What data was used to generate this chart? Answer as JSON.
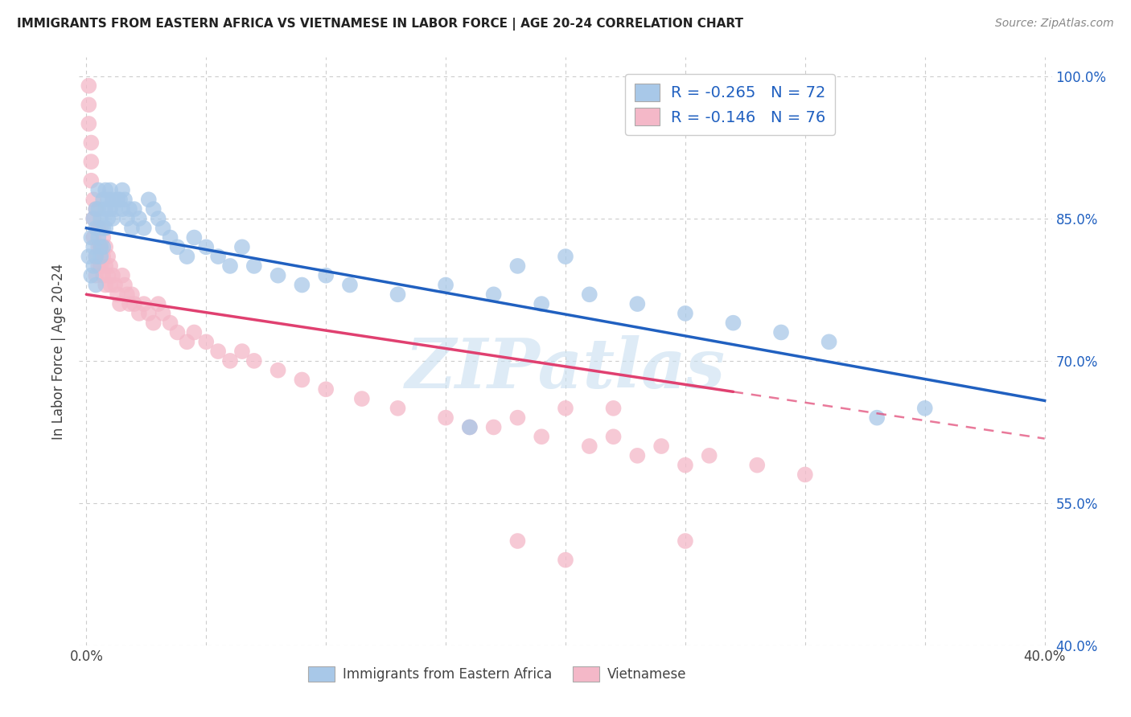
{
  "title": "IMMIGRANTS FROM EASTERN AFRICA VS VIETNAMESE IN LABOR FORCE | AGE 20-24 CORRELATION CHART",
  "source": "Source: ZipAtlas.com",
  "ylabel": "In Labor Force | Age 20-24",
  "xlim": [
    -0.003,
    0.403
  ],
  "ylim": [
    0.4,
    1.02
  ],
  "xtick_positions": [
    0.0,
    0.05,
    0.1,
    0.15,
    0.2,
    0.25,
    0.3,
    0.35,
    0.4
  ],
  "xticklabels": [
    "0.0%",
    "",
    "",
    "",
    "",
    "",
    "",
    "",
    "40.0%"
  ],
  "yticks_right": [
    1.0,
    0.85,
    0.7,
    0.55,
    0.4
  ],
  "ytick_labels_right": [
    "100.0%",
    "85.0%",
    "70.0%",
    "55.0%",
    "40.0%"
  ],
  "blue_R": "-0.265",
  "blue_N": "72",
  "pink_R": "-0.146",
  "pink_N": "76",
  "blue_dot_color": "#a8c8e8",
  "pink_dot_color": "#f4b8c8",
  "blue_line_color": "#2060c0",
  "pink_line_color": "#e04070",
  "legend_text_color": "#2060c0",
  "legend_label_R_black": "R = ",
  "watermark_text": "ZIPatlas",
  "watermark_color": "#c8dff0",
  "legend_label_blue": "Immigrants from Eastern Africa",
  "legend_label_pink": "Vietnamese",
  "blue_line_x0": 0.0,
  "blue_line_x1": 0.4,
  "blue_line_y0": 0.84,
  "blue_line_y1": 0.658,
  "pink_line_solid_x0": 0.0,
  "pink_line_solid_x1": 0.27,
  "pink_line_y0": 0.77,
  "pink_line_y1_at_027": 0.658,
  "pink_line_dash_x0": 0.27,
  "pink_line_dash_x1": 0.4,
  "pink_line_y1": 0.618,
  "grid_color": "#cccccc",
  "bg_color": "#ffffff",
  "blue_scatter_x": [
    0.001,
    0.002,
    0.002,
    0.003,
    0.003,
    0.003,
    0.004,
    0.004,
    0.004,
    0.004,
    0.005,
    0.005,
    0.005,
    0.006,
    0.006,
    0.006,
    0.007,
    0.007,
    0.007,
    0.008,
    0.008,
    0.008,
    0.009,
    0.009,
    0.01,
    0.01,
    0.011,
    0.011,
    0.012,
    0.013,
    0.014,
    0.015,
    0.015,
    0.016,
    0.017,
    0.018,
    0.019,
    0.02,
    0.022,
    0.024,
    0.026,
    0.028,
    0.03,
    0.032,
    0.035,
    0.038,
    0.042,
    0.045,
    0.05,
    0.055,
    0.06,
    0.065,
    0.07,
    0.08,
    0.09,
    0.1,
    0.11,
    0.13,
    0.15,
    0.17,
    0.19,
    0.21,
    0.23,
    0.25,
    0.27,
    0.29,
    0.31,
    0.33,
    0.2,
    0.18,
    0.16,
    0.35
  ],
  "blue_scatter_y": [
    0.81,
    0.83,
    0.79,
    0.85,
    0.82,
    0.8,
    0.86,
    0.84,
    0.81,
    0.78,
    0.88,
    0.86,
    0.83,
    0.85,
    0.82,
    0.81,
    0.87,
    0.84,
    0.82,
    0.88,
    0.86,
    0.84,
    0.87,
    0.85,
    0.88,
    0.86,
    0.87,
    0.85,
    0.86,
    0.87,
    0.87,
    0.88,
    0.86,
    0.87,
    0.85,
    0.86,
    0.84,
    0.86,
    0.85,
    0.84,
    0.87,
    0.86,
    0.85,
    0.84,
    0.83,
    0.82,
    0.81,
    0.83,
    0.82,
    0.81,
    0.8,
    0.82,
    0.8,
    0.79,
    0.78,
    0.79,
    0.78,
    0.77,
    0.78,
    0.77,
    0.76,
    0.77,
    0.76,
    0.75,
    0.74,
    0.73,
    0.72,
    0.64,
    0.81,
    0.8,
    0.63,
    0.65
  ],
  "pink_scatter_x": [
    0.001,
    0.001,
    0.001,
    0.002,
    0.002,
    0.002,
    0.003,
    0.003,
    0.003,
    0.004,
    0.004,
    0.004,
    0.005,
    0.005,
    0.005,
    0.006,
    0.006,
    0.006,
    0.007,
    0.007,
    0.007,
    0.008,
    0.008,
    0.008,
    0.009,
    0.009,
    0.01,
    0.01,
    0.011,
    0.012,
    0.013,
    0.014,
    0.015,
    0.016,
    0.017,
    0.018,
    0.019,
    0.02,
    0.022,
    0.024,
    0.026,
    0.028,
    0.03,
    0.032,
    0.035,
    0.038,
    0.042,
    0.045,
    0.05,
    0.055,
    0.06,
    0.065,
    0.07,
    0.08,
    0.09,
    0.1,
    0.115,
    0.13,
    0.15,
    0.17,
    0.19,
    0.21,
    0.23,
    0.25,
    0.2,
    0.18,
    0.16,
    0.22,
    0.24,
    0.26,
    0.28,
    0.3,
    0.25,
    0.22,
    0.18,
    0.2
  ],
  "pink_scatter_y": [
    0.99,
    0.97,
    0.95,
    0.93,
    0.91,
    0.89,
    0.87,
    0.85,
    0.83,
    0.81,
    0.79,
    0.86,
    0.84,
    0.82,
    0.8,
    0.84,
    0.82,
    0.8,
    0.83,
    0.81,
    0.79,
    0.82,
    0.8,
    0.78,
    0.81,
    0.79,
    0.8,
    0.78,
    0.79,
    0.78,
    0.77,
    0.76,
    0.79,
    0.78,
    0.77,
    0.76,
    0.77,
    0.76,
    0.75,
    0.76,
    0.75,
    0.74,
    0.76,
    0.75,
    0.74,
    0.73,
    0.72,
    0.73,
    0.72,
    0.71,
    0.7,
    0.71,
    0.7,
    0.69,
    0.68,
    0.67,
    0.66,
    0.65,
    0.64,
    0.63,
    0.62,
    0.61,
    0.6,
    0.59,
    0.65,
    0.64,
    0.63,
    0.62,
    0.61,
    0.6,
    0.59,
    0.58,
    0.51,
    0.65,
    0.51,
    0.49
  ]
}
